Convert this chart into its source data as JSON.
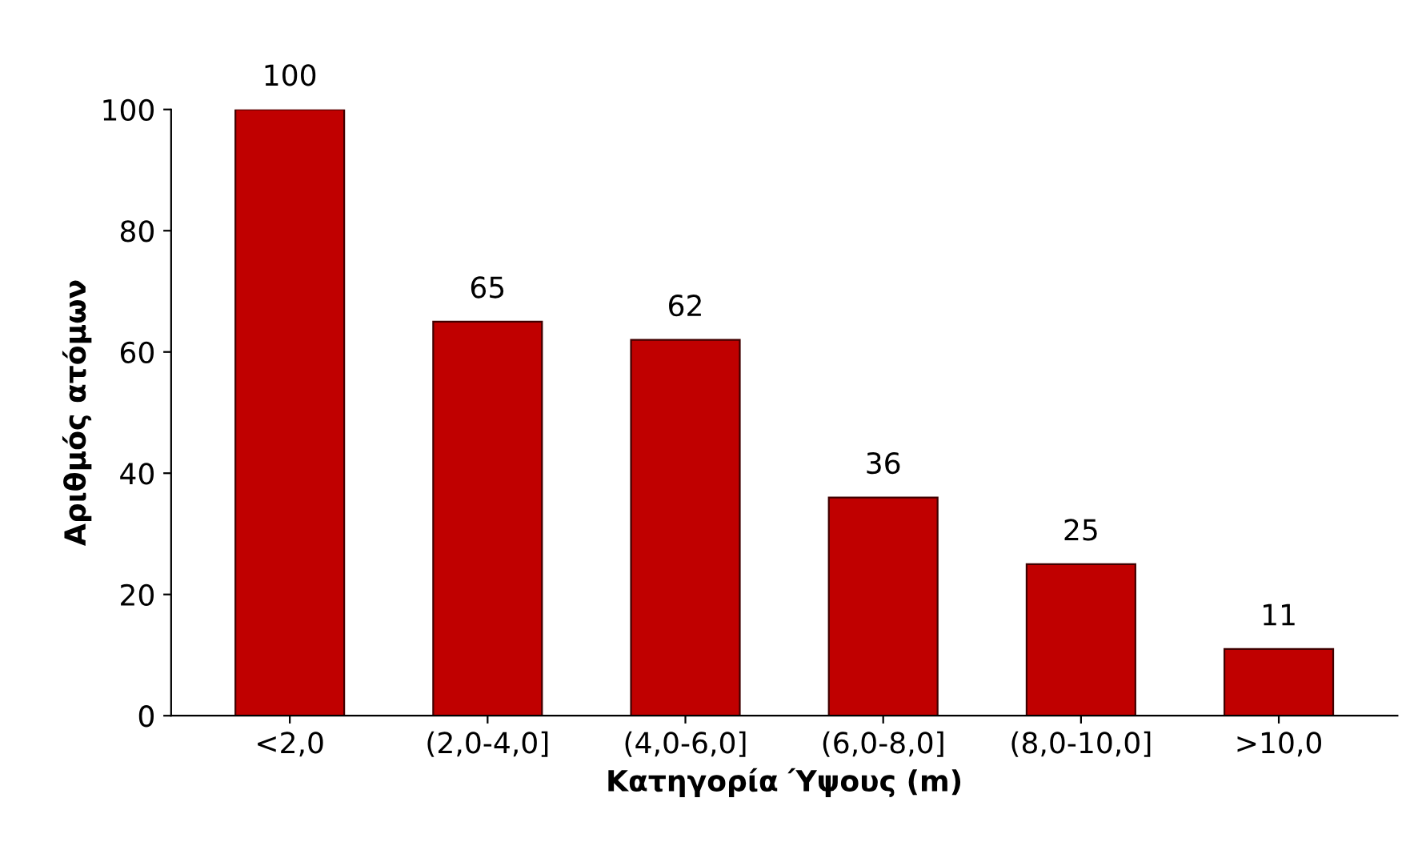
{
  "chart_data": {
    "type": "bar",
    "xlabel": "Κατηγορία Ύψους (m)",
    "ylabel": "Αριθμός ατόμων",
    "categories": [
      "<2,0",
      "(2,0-4,0]",
      "(4,0-6,0]",
      "(6,0-8,0]",
      "(8,0-10,0]",
      ">10,0"
    ],
    "values": [
      100,
      65,
      62,
      36,
      25,
      11
    ],
    "color": "#c00000",
    "ylim": [
      0,
      100
    ],
    "yticks": [
      0,
      20,
      40,
      60,
      80,
      100
    ],
    "grid": false,
    "data_labels": true
  }
}
